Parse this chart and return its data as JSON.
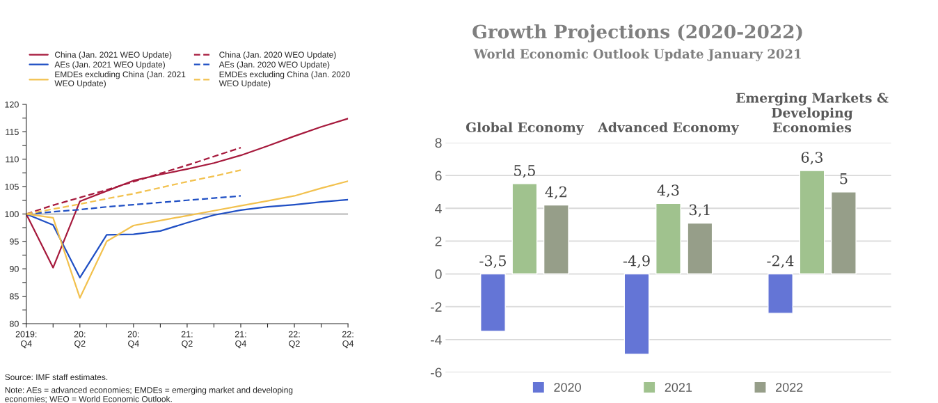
{
  "chart_data": [
    {
      "type": "line",
      "categories": [
        "2019:\nQ4",
        null,
        "20:\nQ2",
        null,
        "20:\nQ4",
        null,
        "21:\nQ2",
        null,
        "21:\nQ4",
        null,
        "22:\nQ2",
        null,
        "22:\nQ4"
      ],
      "ylim": [
        80,
        120
      ],
      "yticks": [
        80,
        {
          "value": 82.5,
          "label": null
        },
        85,
        {
          "value": 87.5,
          "label": null
        },
        90,
        {
          "value": 92.5,
          "label": null
        },
        95,
        {
          "value": 97.5,
          "label": null
        },
        100,
        {
          "value": 102.5,
          "label": null
        },
        105,
        {
          "value": 107.5,
          "label": null
        },
        110,
        {
          "value": 112.5,
          "label": null
        },
        115,
        {
          "value": 117.5,
          "label": null
        },
        120
      ],
      "series": [
        {
          "name": "China (Jan. 2021 WEO Update)",
          "color": "#a6193c",
          "line_style": "solid",
          "values": [
            100,
            90.2,
            102.3,
            104.2,
            106.1,
            107.2,
            108.2,
            109.3,
            110.7,
            112.4,
            114.2,
            115.9,
            117.4
          ]
        },
        {
          "name": "China (Jan. 2020 WEO Update)",
          "color": "#a6193c",
          "line_style": "dashed",
          "values": [
            100,
            101.6,
            103.0,
            104.4,
            105.9,
            107.4,
            108.9,
            110.5,
            112.1,
            null,
            null,
            null,
            null
          ]
        },
        {
          "name": "AEs (Jan. 2021 WEO Update)",
          "color": "#1f4fc4",
          "line_style": "solid",
          "values": [
            100,
            98,
            88.4,
            96.2,
            96.3,
            96.9,
            98.4,
            99.8,
            100.7,
            101.3,
            101.7,
            102.2,
            102.6
          ]
        },
        {
          "name": "AEs (Jan. 2020 WEO Update)",
          "color": "#1f4fc4",
          "line_style": "dashed",
          "values": [
            100,
            100.4,
            100.8,
            101.3,
            101.7,
            102.1,
            102.5,
            102.9,
            103.3,
            null,
            null,
            null,
            null
          ]
        },
        {
          "name": "EMDEs excluding China (Jan. 2021 WEO Update)",
          "color": "#f2c14e",
          "line_style": "solid",
          "values": [
            100,
            99.3,
            84.7,
            95.0,
            97.9,
            98.8,
            99.7,
            100.6,
            101.5,
            102.4,
            103.3,
            104.7,
            106.0
          ]
        },
        {
          "name": "EMDEs excluding China (Jan. 2020 WEO Update)",
          "color": "#f2c14e",
          "line_style": "dashed",
          "values": [
            100,
            100.9,
            101.8,
            102.8,
            103.7,
            104.8,
            105.9,
            106.9,
            108.0,
            null,
            null,
            null,
            null
          ]
        }
      ],
      "ref_lines": [
        {
          "axis": "y",
          "value": 100,
          "color": "#999999"
        }
      ],
      "grid": false,
      "legend": "top",
      "annotations": [
        "Source: IMF staff estimates.",
        "Note: AEs = advanced economies; EMDEs = emerging market and developing economies; WEO = World Economic Outlook."
      ]
    },
    {
      "type": "bar",
      "title": "Growth Projections (2020-2022)",
      "subtitle": "World Economic Outlook Update January 2021",
      "categories": [
        "Global Economy",
        "Advanced Economy",
        "Emerging Markets & Developing Economies"
      ],
      "ylim": [
        -6,
        8
      ],
      "yticks": [
        -6,
        -4,
        -2,
        0,
        2,
        4,
        6,
        8
      ],
      "grid": "y",
      "legend": "bottom",
      "series": [
        {
          "name": "2020",
          "color": "#6475d6",
          "values": [
            -3.5,
            -4.9,
            -2.4
          ],
          "value_labels": [
            "-3,5",
            "-4,9",
            "-2,4"
          ]
        },
        {
          "name": "2021",
          "color": "#a0c28e",
          "values": [
            5.5,
            4.3,
            6.3
          ],
          "value_labels": [
            "5,5",
            "4,3",
            "6,3"
          ]
        },
        {
          "name": "2022",
          "color": "#969e89",
          "values": [
            4.2,
            3.1,
            5
          ],
          "value_labels": [
            "4,2",
            "3,1",
            "5"
          ]
        }
      ]
    }
  ]
}
